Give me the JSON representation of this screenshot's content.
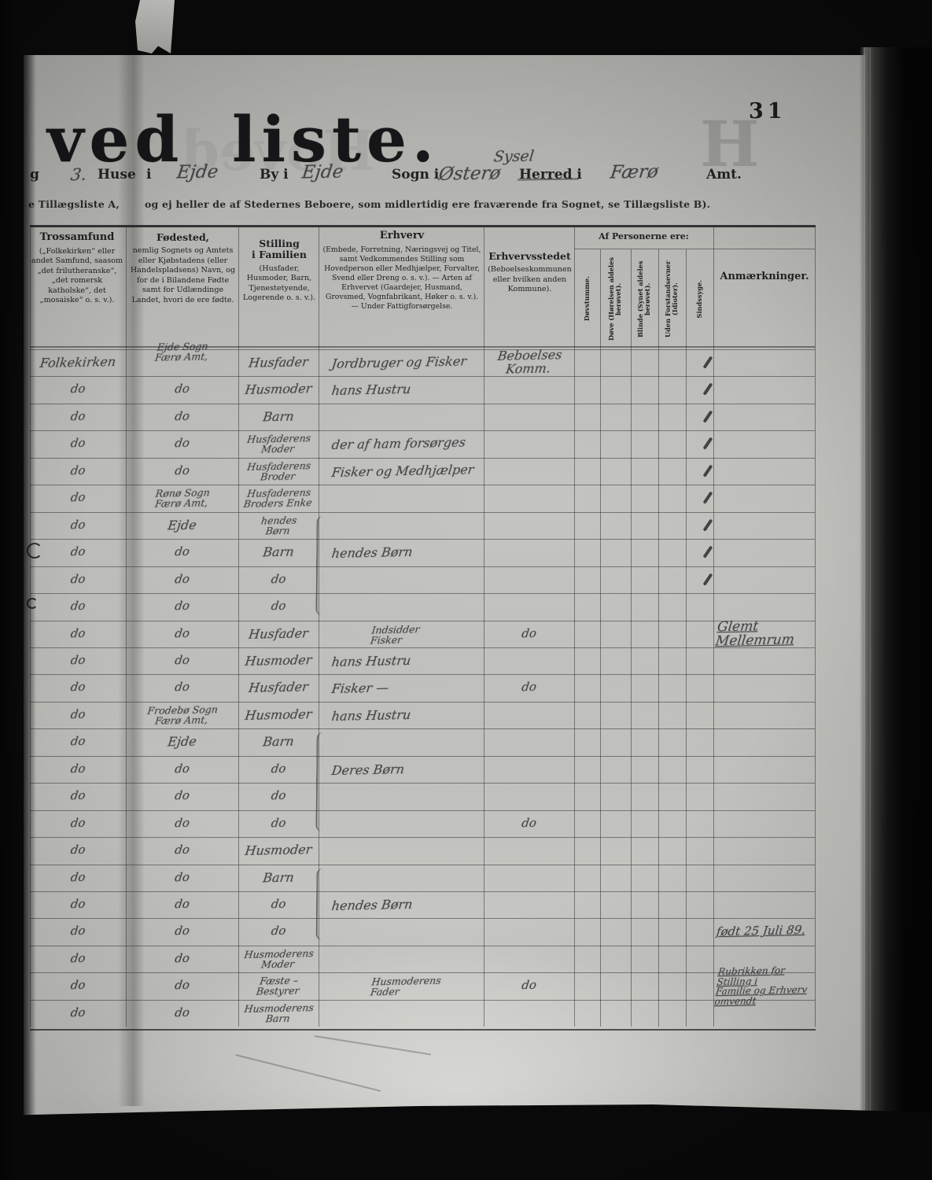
{
  "page_number": "31",
  "title": {
    "main": "ved liste.",
    "ghost": "H",
    "bleed": "Hoved"
  },
  "form_line": {
    "prefix": "g",
    "house_no": "3.",
    "huse_label": "Huse",
    "i_label": "i",
    "town": "Ejde",
    "by_label": "By i",
    "town2": "Ejde",
    "sogn_label": "Sogn i",
    "parish": "Østerø",
    "syssel": "Sysel",
    "herred_label": "Herred i",
    "county": "Færø",
    "amt_label": "Amt."
  },
  "note_line": {
    "left": "e Tillægsliste A,",
    "right": "og ej heller de af Stedernes Beboere, som midlertidig ere fraværende fra Sognet, se Tillægsliste B)."
  },
  "table": {
    "header": {
      "trossamfund": {
        "title": "Trossamfund",
        "sub": "(„Folkekirken“ eller andet Samfund, saasom „det frilutheranske“, „det romersk katholske“, det „mosaiske“ o. s. v.)."
      },
      "fodested": {
        "title": "Fødested,",
        "sub": "nemlig Sognets og Amtets eller Kjøbstadens (eller Handelspladsens) Navn, og for de i Bilandene Fødte samt for Udlændinge Landet, hvori de ere fødte."
      },
      "stilling": {
        "title": "Stilling\ni Familien",
        "sub": "(Husfader, Husmoder, Barn, Tjenestetyende, Logerende o. s. v.)."
      },
      "erhverv": {
        "title": "Erhverv",
        "sub": "(Embede, Forretning, Næringsvej og Titel, samt Vedkommendes Stilling som Hovedperson eller Medhjælper, Forvalter, Svend eller Dreng o. s. v.). — Arten af Erhvervet (Gaardejer, Husmand, Grovsmed, Vognfabrikant, Høker o. s. v.). — Under Fattigforsørgelse.",
        "af_personerne": "Af Personerne ere:"
      },
      "erhvervsstedet": {
        "title": "Erhvervsstedet",
        "sub": "(Beboelseskommunen eller hvilken anden Kommune)."
      },
      "af_personerne": "Af Personerne ere:",
      "tick_columns": [
        "Døvstumme.",
        "Døve (Hørelsen aldeles berøvet).",
        "Blinde (Synet aldeles berøvet).",
        "Uden Forstandsevner (Idioter).",
        "Sindssyge."
      ],
      "anmaerkninger": "Anmærkninger."
    },
    "rows": [
      {
        "trossamfund": "Folkekirken",
        "fodested": "Ejde Sogn\nFærø Amt,",
        "stilling": "Husfader",
        "erhverv": "Jordbruger og Fisker",
        "sted": "Beboelses Komm.",
        "mark": true,
        "anm": ""
      },
      {
        "trossamfund": "do",
        "fodested": "do",
        "stilling": "Husmoder",
        "erhverv": "hans Hustru",
        "sted": "",
        "mark": true,
        "anm": ""
      },
      {
        "trossamfund": "do",
        "fodested": "do",
        "stilling": "Barn",
        "erhverv": "",
        "sted": "",
        "mark": true,
        "anm": ""
      },
      {
        "trossamfund": "do",
        "fodested": "do",
        "stilling": "Husfaderens\nModer",
        "erhverv": "der af ham forsørges",
        "sted": "",
        "mark": true,
        "anm": ""
      },
      {
        "trossamfund": "do",
        "fodested": "do",
        "stilling": "Husfaderens\nBroder",
        "erhverv": "Fisker og Medhjælper",
        "sted": "",
        "mark": true,
        "anm": ""
      },
      {
        "trossamfund": "do",
        "fodested": "Rønø Sogn\nFærø Amt,",
        "stilling": "Husfaderens\nBroders Enke",
        "erhverv": "",
        "sted": "",
        "mark": true,
        "anm": ""
      },
      {
        "trossamfund": "do",
        "fodested": "Ejde",
        "stilling": "hendes\nBørn",
        "erhverv": "",
        "sted": "",
        "mark": true,
        "anm": ""
      },
      {
        "trossamfund": "do",
        "fodested": "do",
        "stilling": "Barn",
        "erhverv": "hendes Børn",
        "sted": "",
        "mark": true,
        "anm": ""
      },
      {
        "trossamfund": "do",
        "fodested": "do",
        "stilling": "do",
        "erhverv": "",
        "sted": "",
        "mark": true,
        "anm": ""
      },
      {
        "trossamfund": "do",
        "fodested": "do",
        "stilling": "do",
        "erhverv": "",
        "sted": "",
        "mark": false,
        "anm": ""
      },
      {
        "trossamfund": "do",
        "fodested": "do",
        "stilling": "Husfader",
        "erhverv": "Indsidder\nFisker",
        "sted": "do",
        "mark": false,
        "anm": "Glemt Mellemrum"
      },
      {
        "trossamfund": "do",
        "fodested": "do",
        "stilling": "Husmoder",
        "erhverv": "hans Hustru",
        "sted": "",
        "mark": false,
        "anm": ""
      },
      {
        "trossamfund": "do",
        "fodested": "do",
        "stilling": "Husfader",
        "erhverv": "Fisker —",
        "sted": "do",
        "mark": false,
        "anm": ""
      },
      {
        "trossamfund": "do",
        "fodested": "Frodebø Sogn\nFærø Amt,",
        "stilling": "Husmoder",
        "erhverv": "hans Hustru",
        "sted": "",
        "mark": false,
        "anm": ""
      },
      {
        "trossamfund": "do",
        "fodested": "Ejde",
        "stilling": "Barn",
        "erhverv": "",
        "sted": "",
        "mark": false,
        "anm": ""
      },
      {
        "trossamfund": "do",
        "fodested": "do",
        "stilling": "do",
        "erhverv": "Deres Børn",
        "sted": "",
        "mark": false,
        "anm": ""
      },
      {
        "trossamfund": "do",
        "fodested": "do",
        "stilling": "do",
        "erhverv": "",
        "sted": "",
        "mark": false,
        "anm": ""
      },
      {
        "trossamfund": "do",
        "fodested": "do",
        "stilling": "do",
        "erhverv": "",
        "sted": "do",
        "mark": false,
        "anm": ""
      },
      {
        "trossamfund": "do",
        "fodested": "do",
        "stilling": "Husmoder",
        "erhverv": "",
        "sted": "",
        "mark": false,
        "anm": ""
      },
      {
        "trossamfund": "do",
        "fodested": "do",
        "stilling": "Barn",
        "erhverv": "",
        "sted": "",
        "mark": false,
        "anm": ""
      },
      {
        "trossamfund": "do",
        "fodested": "do",
        "stilling": "do",
        "erhverv": "hendes Børn",
        "sted": "",
        "mark": false,
        "anm": ""
      },
      {
        "trossamfund": "do",
        "fodested": "do",
        "stilling": "do",
        "erhverv": "",
        "sted": "",
        "mark": false,
        "anm": "født 25 Juli 89."
      },
      {
        "trossamfund": "do",
        "fodested": "do",
        "stilling": "Husmoderens\nModer",
        "erhverv": "",
        "sted": "",
        "mark": false,
        "anm": ""
      },
      {
        "trossamfund": "do",
        "fodested": "do",
        "stilling": "Fæste –\nBestyrer",
        "erhverv": "Husmoderens\nFader",
        "sted": "do",
        "mark": false,
        "anm": "Rubrikken for Stilling i\nFamilie og Erhverv omvendt"
      },
      {
        "trossamfund": "do",
        "fodested": "do",
        "stilling": "Husmoderens\nBarn",
        "erhverv": "",
        "sted": "",
        "mark": false,
        "anm": ""
      }
    ],
    "braces": [
      {
        "from": 7,
        "to": 10
      },
      {
        "from": 15,
        "to": 18
      },
      {
        "from": 20,
        "to": 22
      }
    ]
  }
}
